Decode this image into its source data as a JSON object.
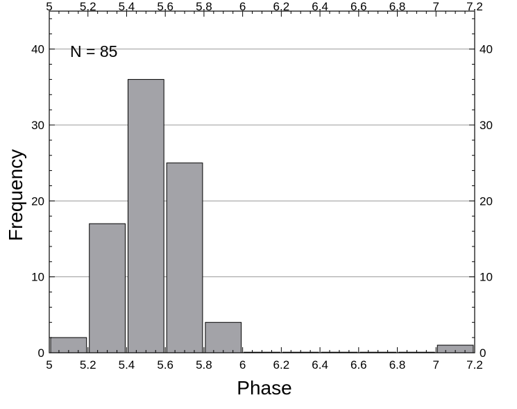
{
  "chart_data": {
    "type": "bar",
    "annotation": "N = 85",
    "xlabel": "Phase",
    "ylabel": "Frequency",
    "xlim": [
      5,
      7.2
    ],
    "ylim": [
      0,
      45
    ],
    "bin_width": 0.2,
    "bins": [
      5.0,
      5.2,
      5.4,
      5.6,
      5.8,
      6.0,
      6.2,
      6.4,
      6.6,
      6.8,
      7.0
    ],
    "values": [
      2,
      17,
      36,
      25,
      4,
      0,
      0,
      0,
      0,
      0,
      1
    ],
    "x_ticks": [
      "5",
      "5.2",
      "5.4",
      "5.6",
      "5.8",
      "6",
      "6.2",
      "6.4",
      "6.6",
      "6.8",
      "7",
      "7.2"
    ],
    "y_ticks": [
      "0",
      "10",
      "20",
      "30",
      "40"
    ],
    "grid": "horizontal",
    "bar_color": "#a3a3a8",
    "bar_edge_color": "#000000",
    "grid_color": "#9a9a9a"
  }
}
